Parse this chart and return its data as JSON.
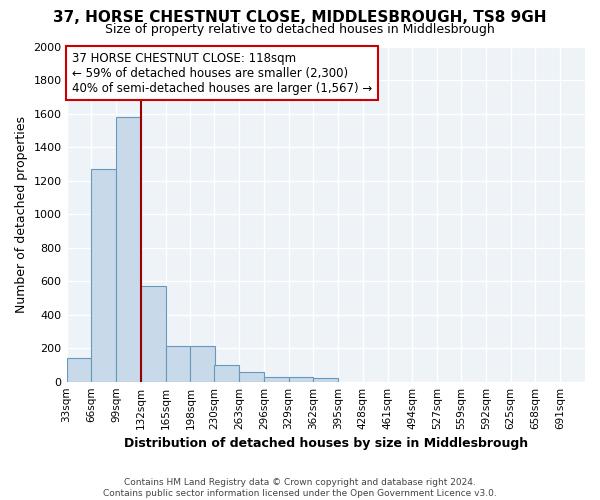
{
  "title": "37, HORSE CHESTNUT CLOSE, MIDDLESBROUGH, TS8 9GH",
  "subtitle": "Size of property relative to detached houses in Middlesbrough",
  "xlabel": "Distribution of detached houses by size in Middlesbrough",
  "ylabel": "Number of detached properties",
  "bar_color": "#c8d9ea",
  "bar_edge_color": "#6699bb",
  "background_color": "#ffffff",
  "plot_bg_color": "#eef3f8",
  "grid_color": "#ffffff",
  "annotation_line_color": "#990000",
  "annotation_text": "37 HORSE CHESTNUT CLOSE: 118sqm\n← 59% of detached houses are smaller (2,300)\n40% of semi-detached houses are larger (1,567) →",
  "property_size_bin": 132,
  "categories": [
    "33sqm",
    "66sqm",
    "99sqm",
    "132sqm",
    "165sqm",
    "198sqm",
    "230sqm",
    "263sqm",
    "296sqm",
    "329sqm",
    "362sqm",
    "395sqm",
    "428sqm",
    "461sqm",
    "494sqm",
    "527sqm",
    "559sqm",
    "592sqm",
    "625sqm",
    "658sqm",
    "691sqm"
  ],
  "bin_edges": [
    33,
    66,
    99,
    132,
    165,
    198,
    230,
    263,
    296,
    329,
    362,
    395,
    428,
    461,
    494,
    527,
    559,
    592,
    625,
    658,
    691
  ],
  "bin_width": 33,
  "values": [
    140,
    1270,
    1580,
    570,
    215,
    215,
    100,
    55,
    30,
    25,
    20,
    0,
    0,
    0,
    0,
    0,
    0,
    0,
    0,
    0,
    0
  ],
  "ylim": [
    0,
    2000
  ],
  "yticks": [
    0,
    200,
    400,
    600,
    800,
    1000,
    1200,
    1400,
    1600,
    1800,
    2000
  ],
  "footer": "Contains HM Land Registry data © Crown copyright and database right 2024.\nContains public sector information licensed under the Open Government Licence v3.0.",
  "annotation_box_color": "#ffffff",
  "annotation_box_edge": "#cc0000",
  "title_fontsize": 11,
  "subtitle_fontsize": 9,
  "ylabel_fontsize": 9,
  "xlabel_fontsize": 9
}
